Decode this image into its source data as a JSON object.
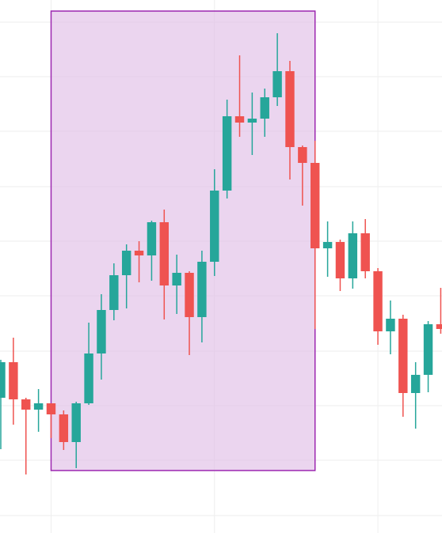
{
  "chart_data": {
    "type": "candlestick",
    "x": [
      0,
      1,
      2,
      3,
      4,
      5,
      6,
      7,
      8,
      9,
      10,
      11,
      12,
      13,
      14,
      15,
      16,
      17,
      18,
      19,
      20,
      21,
      22,
      23,
      24,
      25,
      26,
      27,
      28,
      29,
      30,
      31,
      32,
      33,
      34,
      35
    ],
    "open": [
      171,
      216,
      169,
      156,
      164,
      150,
      115,
      164,
      227,
      282,
      326,
      357,
      351,
      393,
      313,
      329,
      273,
      343,
      433,
      527,
      519,
      524,
      551,
      584,
      488,
      468,
      360,
      368,
      322,
      379,
      331,
      255,
      271,
      177,
      200,
      264
    ],
    "high": [
      219,
      247,
      171,
      182,
      164,
      155,
      166,
      266,
      302,
      341,
      365,
      369,
      395,
      409,
      352,
      331,
      357,
      460,
      548,
      604,
      557,
      562,
      632,
      597,
      490,
      496,
      394,
      371,
      394,
      397,
      335,
      294,
      276,
      216,
      268,
      310
    ],
    "low": [
      106,
      137,
      74,
      128,
      120,
      105,
      82,
      162,
      194,
      269,
      284,
      317,
      319,
      270,
      277,
      225,
      241,
      325,
      423,
      501,
      478,
      501,
      540,
      447,
      414,
      258,
      324,
      306,
      309,
      322,
      238,
      226,
      147,
      132,
      178,
      252
    ],
    "close": [
      216,
      169,
      156,
      164,
      150,
      115,
      164,
      227,
      282,
      326,
      357,
      351,
      393,
      313,
      329,
      273,
      343,
      433,
      527,
      519,
      524,
      551,
      584,
      488,
      468,
      360,
      368,
      322,
      379,
      331,
      255,
      271,
      177,
      200,
      264,
      258
    ],
    "up_color": "#26a69a",
    "down_color": "#ef5350",
    "xlim": [
      -0.063,
      35.1
    ],
    "xticks": [
      4,
      17,
      30
    ],
    "ylim": [
      0,
      674
    ],
    "yticks": [
      22,
      92,
      161,
      230,
      300,
      369,
      438,
      508,
      577,
      646
    ],
    "grid": true,
    "highlight": {
      "x": [
        4,
        25
      ],
      "y": [
        79,
        660
      ],
      "fill": "#e1bee7",
      "stroke": "#9c27b0"
    }
  }
}
